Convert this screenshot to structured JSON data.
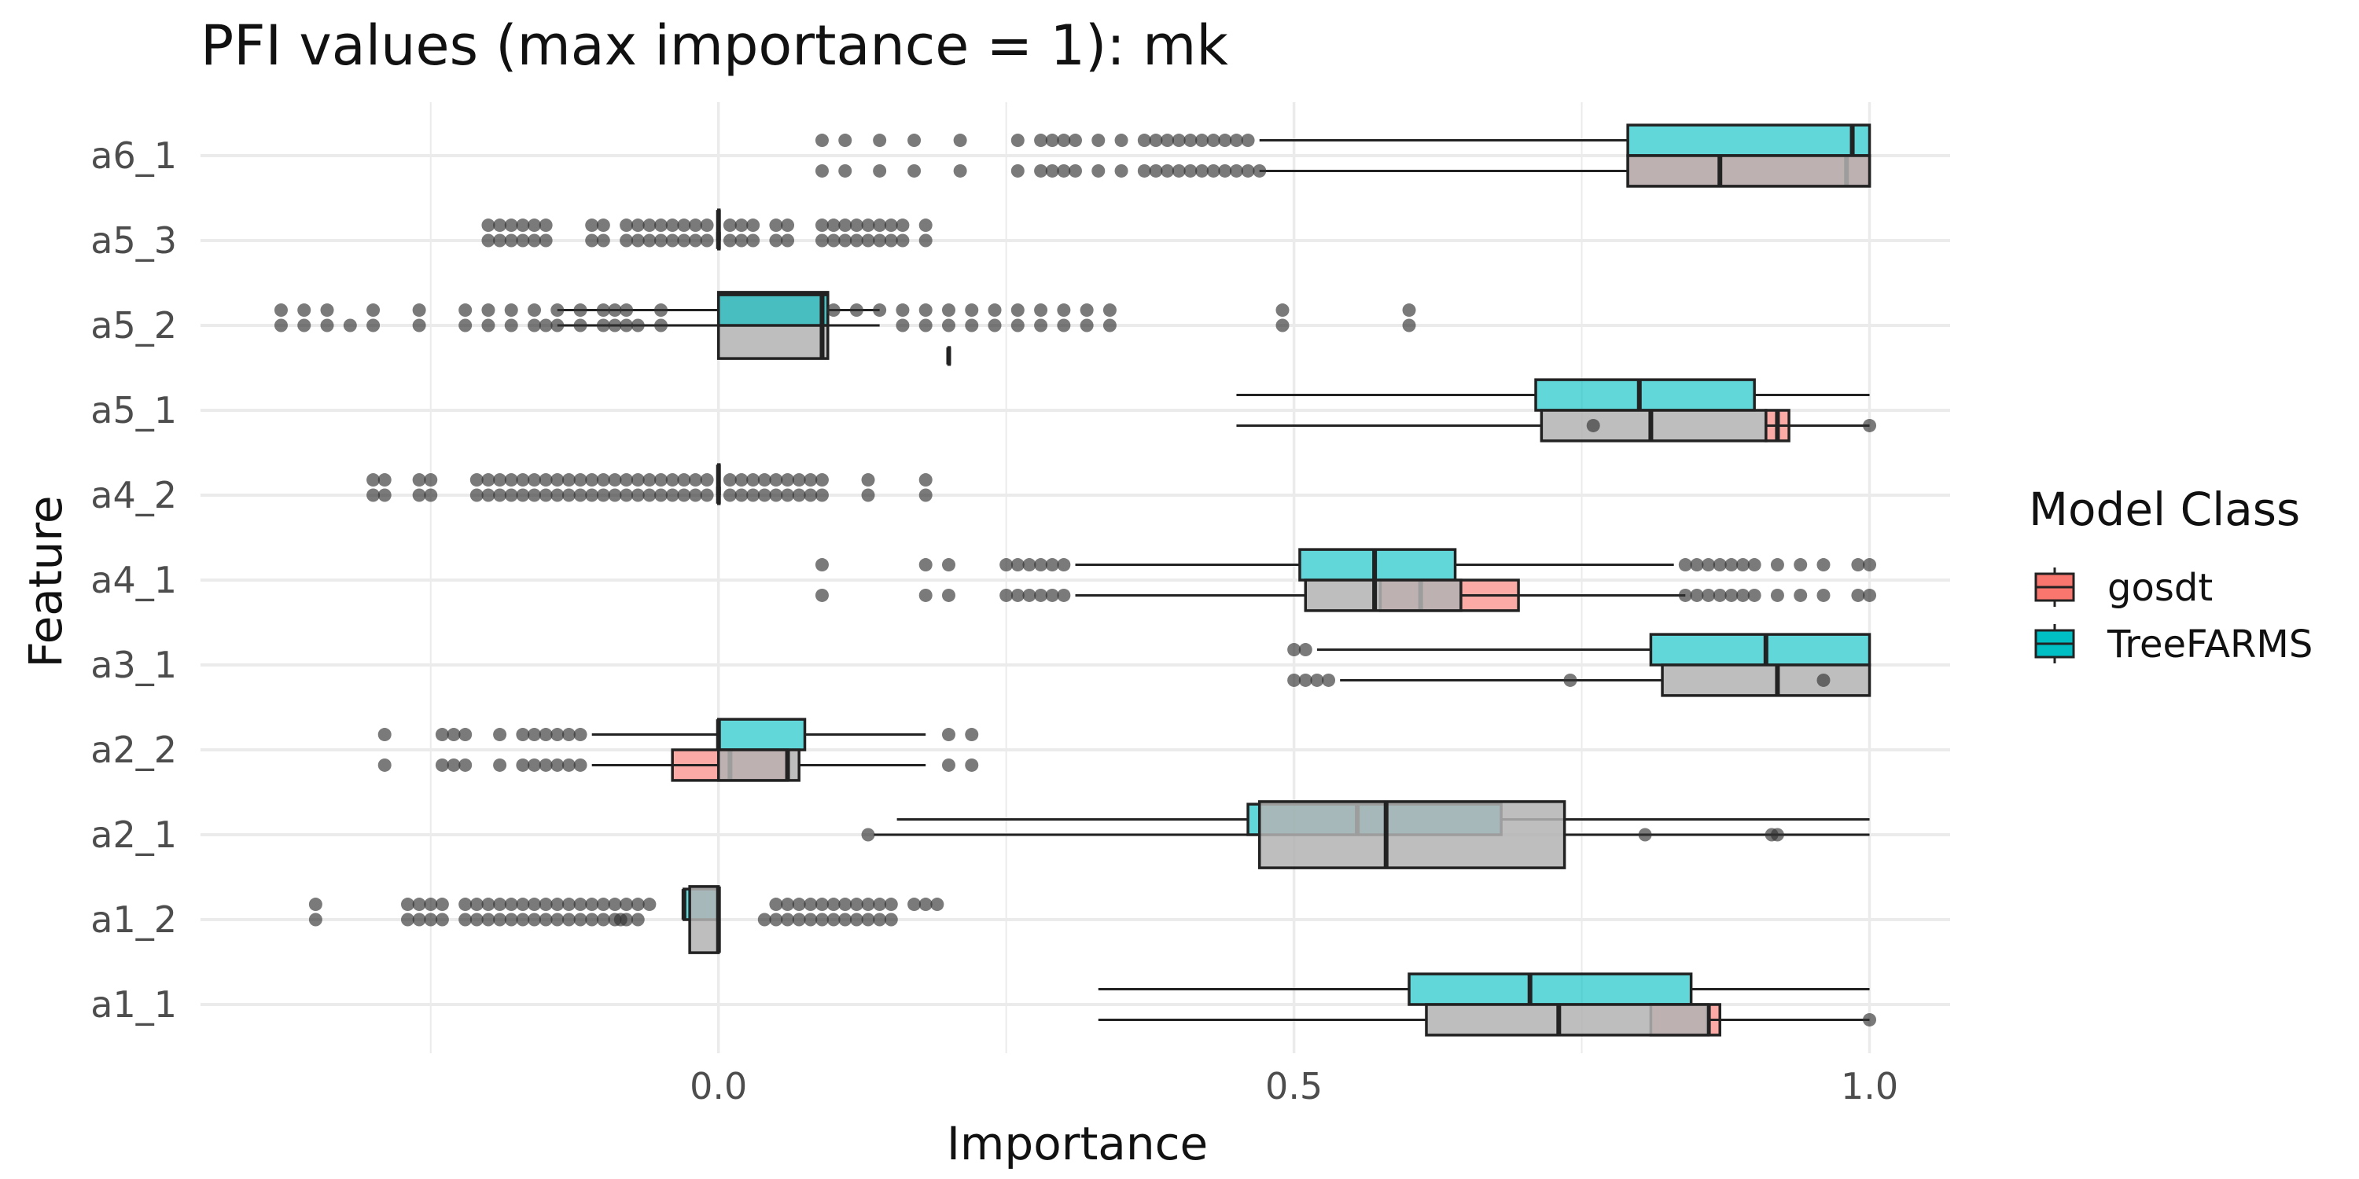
{
  "chart_data": {
    "type": "boxplot",
    "title": "PFI values (max importance = 1): mk",
    "xlabel": "Importance",
    "ylabel": "Feature",
    "xlim": [
      -0.45,
      1.07
    ],
    "x_ticks": [
      {
        "value": 0.0,
        "label": "0.0"
      },
      {
        "value": 0.5,
        "label": "0.5"
      },
      {
        "value": 1.0,
        "label": "1.0"
      }
    ],
    "x_minor_ticks": [
      -0.25,
      0.25,
      0.75
    ],
    "grid": true,
    "legend": {
      "title": "Model Class",
      "placement": "right",
      "entries": [
        {
          "label": "gosdt",
          "color": "#F8766D"
        },
        {
          "label": "TreeFARMS",
          "color": "#00BFC4"
        }
      ]
    },
    "colors": {
      "gosdt": "#F8766D",
      "TreeFARMS": "#00BFC4",
      "other": "#b3b3b3",
      "outline": "#222222",
      "grid": "#ebebeb"
    },
    "categories": [
      "a6_1",
      "a5_3",
      "a5_2",
      "a5_1",
      "a4_2",
      "a4_1",
      "a3_1",
      "a2_2",
      "a2_1",
      "a1_2",
      "a1_1"
    ],
    "boxes": [
      {
        "feature": "a6_1",
        "group": "TreeFARMS",
        "lane": -0.18,
        "height": 0.36,
        "q1": 0.79,
        "median": 0.985,
        "q3": 1.0,
        "whisker_low": 0.47,
        "whisker_high": 1.0,
        "outliers": [
          0.09,
          0.11,
          0.14,
          0.17,
          0.21,
          0.26,
          0.28,
          0.29,
          0.3,
          0.31,
          0.33,
          0.35,
          0.37,
          0.38,
          0.39,
          0.4,
          0.41,
          0.42,
          0.43,
          0.44,
          0.45,
          0.46
        ]
      },
      {
        "feature": "a6_1",
        "group": "gosdt",
        "lane": 0.18,
        "height": 0.36,
        "q1": 0.79,
        "median": 0.98,
        "q3": 1.0,
        "whisker_low": 0.76,
        "whisker_high": 1.0,
        "outliers": []
      },
      {
        "feature": "a6_1",
        "group": "other",
        "lane": 0.18,
        "height": 0.36,
        "q1": 0.79,
        "median": 0.87,
        "q3": 1.0,
        "whisker_low": 0.47,
        "whisker_high": 1.0,
        "outliers": [
          0.09,
          0.11,
          0.14,
          0.17,
          0.21,
          0.26,
          0.28,
          0.29,
          0.3,
          0.31,
          0.33,
          0.35,
          0.37,
          0.38,
          0.39,
          0.4,
          0.41,
          0.42,
          0.43,
          0.44,
          0.45,
          0.46,
          0.47
        ]
      },
      {
        "feature": "a5_3",
        "group": "TreeFARMS",
        "lane": -0.18,
        "height": 0.36,
        "q1": 0.0,
        "median": 0.0,
        "q3": 0.0,
        "whisker_low": 0.0,
        "whisker_high": 0.0,
        "outliers": [
          -0.2,
          -0.19,
          -0.18,
          -0.17,
          -0.16,
          -0.15,
          -0.11,
          -0.1,
          -0.08,
          -0.07,
          -0.06,
          -0.05,
          -0.04,
          -0.03,
          -0.02,
          -0.01,
          0.01,
          0.02,
          0.03,
          0.05,
          0.06,
          0.09,
          0.1,
          0.11,
          0.12,
          0.13,
          0.14,
          0.15,
          0.16,
          0.18
        ]
      },
      {
        "feature": "a5_3",
        "group": "other",
        "lane": 0.0,
        "height": 0.2,
        "q1": 0.0,
        "median": 0.0,
        "q3": 0.0,
        "whisker_low": 0.0,
        "whisker_high": 0.0,
        "outliers": [
          -0.2,
          -0.19,
          -0.18,
          -0.17,
          -0.16,
          -0.15,
          -0.11,
          -0.1,
          -0.08,
          -0.07,
          -0.06,
          -0.05,
          -0.04,
          -0.03,
          -0.02,
          -0.01,
          0.01,
          0.02,
          0.03,
          0.05,
          0.06,
          0.09,
          0.1,
          0.11,
          0.12,
          0.13,
          0.14,
          0.15,
          0.16,
          0.18
        ]
      },
      {
        "feature": "a5_2",
        "group": "other",
        "lane": 0.0,
        "height": 0.78,
        "q1": 0.0,
        "median": 0.09,
        "q3": 0.095,
        "whisker_low": -0.14,
        "whisker_high": 0.14,
        "outliers": [
          -0.38,
          -0.36,
          -0.34,
          -0.32,
          -0.3,
          -0.26,
          -0.22,
          -0.2,
          -0.18,
          -0.16,
          -0.15,
          -0.14,
          -0.12,
          -0.1,
          -0.09,
          -0.08,
          -0.07,
          -0.05,
          0.16,
          0.18,
          0.2,
          0.22,
          0.24,
          0.26,
          0.28,
          0.3,
          0.32,
          0.34,
          0.49,
          0.6
        ]
      },
      {
        "feature": "a5_2",
        "group": "TreeFARMS",
        "lane": -0.18,
        "height": 0.36,
        "q1": 0.0,
        "median": 0.09,
        "q3": 0.095,
        "whisker_low": -0.14,
        "whisker_high": 0.14,
        "outliers": [
          -0.38,
          -0.36,
          -0.34,
          -0.3,
          -0.26,
          -0.22,
          -0.2,
          -0.18,
          -0.16,
          -0.14,
          -0.12,
          -0.1,
          -0.09,
          -0.08,
          -0.05,
          0.1,
          0.12,
          0.14,
          0.16,
          0.18,
          0.2,
          0.22,
          0.24,
          0.26,
          0.28,
          0.3,
          0.32,
          0.34,
          0.49,
          0.6
        ]
      },
      {
        "feature": "a5_2",
        "group": "gosdt",
        "lane": 0.36,
        "height": 0.2,
        "q1": 0.2,
        "median": 0.2,
        "q3": 0.2,
        "whisker_low": 0.2,
        "whisker_high": 0.2,
        "outliers": []
      },
      {
        "feature": "a5_1",
        "group": "TreeFARMS",
        "lane": -0.18,
        "height": 0.36,
        "q1": 0.71,
        "median": 0.8,
        "q3": 0.9,
        "whisker_low": 0.45,
        "whisker_high": 1.0,
        "outliers": []
      },
      {
        "feature": "a5_1",
        "group": "gosdt",
        "lane": 0.18,
        "height": 0.36,
        "q1": 0.91,
        "median": 0.92,
        "q3": 0.93,
        "whisker_low": 0.91,
        "whisker_high": 0.93,
        "outliers": []
      },
      {
        "feature": "a5_1",
        "group": "other",
        "lane": 0.18,
        "height": 0.36,
        "q1": 0.715,
        "median": 0.81,
        "q3": 0.91,
        "whisker_low": 0.45,
        "whisker_high": 1.0,
        "outliers": [
          0.76,
          1.0
        ]
      },
      {
        "feature": "a4_2",
        "group": "TreeFARMS",
        "lane": -0.18,
        "height": 0.36,
        "q1": 0.0,
        "median": 0.0,
        "q3": 0.0,
        "whisker_low": 0.0,
        "whisker_high": 0.0,
        "outliers": [
          -0.3,
          -0.29,
          -0.26,
          -0.25,
          -0.21,
          -0.2,
          -0.19,
          -0.18,
          -0.17,
          -0.16,
          -0.15,
          -0.14,
          -0.13,
          -0.12,
          -0.11,
          -0.1,
          -0.09,
          -0.08,
          -0.07,
          -0.06,
          -0.05,
          -0.04,
          -0.03,
          -0.02,
          -0.01,
          0.01,
          0.02,
          0.03,
          0.04,
          0.05,
          0.06,
          0.07,
          0.08,
          0.09,
          0.13,
          0.18
        ]
      },
      {
        "feature": "a4_2",
        "group": "other",
        "lane": 0.0,
        "height": 0.2,
        "q1": 0.0,
        "median": 0.0,
        "q3": 0.0,
        "whisker_low": 0.0,
        "whisker_high": 0.0,
        "outliers": [
          -0.3,
          -0.29,
          -0.26,
          -0.25,
          -0.21,
          -0.2,
          -0.19,
          -0.18,
          -0.17,
          -0.16,
          -0.15,
          -0.14,
          -0.13,
          -0.12,
          -0.11,
          -0.1,
          -0.09,
          -0.08,
          -0.07,
          -0.06,
          -0.05,
          -0.04,
          -0.03,
          -0.02,
          -0.01,
          0.01,
          0.02,
          0.03,
          0.04,
          0.05,
          0.06,
          0.07,
          0.08,
          0.09,
          0.13,
          0.18
        ]
      },
      {
        "feature": "a4_1",
        "group": "TreeFARMS",
        "lane": -0.18,
        "height": 0.36,
        "q1": 0.505,
        "median": 0.57,
        "q3": 0.64,
        "whisker_low": 0.31,
        "whisker_high": 0.83,
        "outliers": [
          0.09,
          0.18,
          0.2,
          0.25,
          0.26,
          0.27,
          0.28,
          0.29,
          0.3,
          0.84,
          0.85,
          0.86,
          0.87,
          0.88,
          0.89,
          0.9,
          0.92,
          0.94,
          0.96,
          0.99,
          1.0
        ]
      },
      {
        "feature": "a4_1",
        "group": "gosdt",
        "lane": 0.18,
        "height": 0.36,
        "q1": 0.575,
        "median": 0.61,
        "q3": 0.695,
        "whisker_low": 0.575,
        "whisker_high": 0.695,
        "outliers": []
      },
      {
        "feature": "a4_1",
        "group": "other",
        "lane": 0.18,
        "height": 0.36,
        "q1": 0.51,
        "median": 0.57,
        "q3": 0.645,
        "whisker_low": 0.31,
        "whisker_high": 0.84,
        "outliers": [
          0.09,
          0.18,
          0.2,
          0.25,
          0.26,
          0.27,
          0.28,
          0.29,
          0.3,
          0.84,
          0.85,
          0.86,
          0.87,
          0.88,
          0.89,
          0.9,
          0.92,
          0.94,
          0.96,
          0.99,
          1.0
        ]
      },
      {
        "feature": "a3_1",
        "group": "TreeFARMS",
        "lane": -0.18,
        "height": 0.36,
        "q1": 0.81,
        "median": 0.91,
        "q3": 1.0,
        "whisker_low": 0.52,
        "whisker_high": 1.0,
        "outliers": [
          0.5,
          0.51
        ]
      },
      {
        "feature": "a3_1",
        "group": "other",
        "lane": 0.18,
        "height": 0.36,
        "q1": 0.82,
        "median": 0.92,
        "q3": 1.0,
        "whisker_low": 0.54,
        "whisker_high": 1.0,
        "outliers": [
          0.5,
          0.51,
          0.52,
          0.53,
          0.74,
          0.96
        ]
      },
      {
        "feature": "a2_2",
        "group": "TreeFARMS",
        "lane": -0.18,
        "height": 0.36,
        "q1": 0.0,
        "median": 0.0,
        "q3": 0.075,
        "whisker_low": -0.11,
        "whisker_high": 0.18,
        "outliers": [
          -0.29,
          -0.24,
          -0.23,
          -0.22,
          -0.19,
          -0.17,
          -0.16,
          -0.15,
          -0.14,
          -0.13,
          -0.12,
          0.2,
          0.22
        ]
      },
      {
        "feature": "a2_2",
        "group": "gosdt",
        "lane": 0.18,
        "height": 0.36,
        "q1": -0.04,
        "median": 0.01,
        "q3": 0.06,
        "whisker_low": -0.04,
        "whisker_high": 0.06,
        "outliers": []
      },
      {
        "feature": "a2_2",
        "group": "other",
        "lane": 0.18,
        "height": 0.36,
        "q1": 0.0,
        "median": 0.06,
        "q3": 0.07,
        "whisker_low": -0.11,
        "whisker_high": 0.18,
        "outliers": [
          -0.29,
          -0.24,
          -0.23,
          -0.22,
          -0.19,
          -0.17,
          -0.16,
          -0.15,
          -0.14,
          -0.13,
          -0.12,
          0.2,
          0.22
        ]
      },
      {
        "feature": "a2_1",
        "group": "TreeFARMS",
        "lane": -0.18,
        "height": 0.36,
        "q1": 0.46,
        "median": 0.555,
        "q3": 0.68,
        "whisker_low": 0.155,
        "whisker_high": 1.0,
        "outliers": []
      },
      {
        "feature": "a2_1",
        "group": "other",
        "lane": 0.0,
        "height": 0.78,
        "q1": 0.47,
        "median": 0.58,
        "q3": 0.735,
        "whisker_low": 0.135,
        "whisker_high": 1.0,
        "outliers": [
          0.13,
          0.805,
          0.915,
          0.92
        ]
      },
      {
        "feature": "a1_2",
        "group": "TreeFARMS",
        "lane": -0.18,
        "height": 0.36,
        "q1": -0.03,
        "median": -0.03,
        "q3": 0.0,
        "whisker_low": -0.03,
        "whisker_high": 0.0,
        "outliers": [
          -0.35,
          -0.27,
          -0.26,
          -0.25,
          -0.24,
          -0.22,
          -0.21,
          -0.2,
          -0.19,
          -0.18,
          -0.17,
          -0.16,
          -0.15,
          -0.14,
          -0.13,
          -0.12,
          -0.11,
          -0.1,
          -0.09,
          -0.08,
          -0.07,
          -0.06,
          0.05,
          0.06,
          0.07,
          0.08,
          0.09,
          0.1,
          0.11,
          0.12,
          0.13,
          0.14,
          0.15,
          0.17,
          0.18,
          0.19
        ]
      },
      {
        "feature": "a1_2",
        "group": "other",
        "lane": 0.0,
        "height": 0.78,
        "q1": -0.025,
        "median": 0.0,
        "q3": 0.0,
        "whisker_low": -0.025,
        "whisker_high": 0.0,
        "outliers": [
          -0.35,
          -0.27,
          -0.26,
          -0.25,
          -0.24,
          -0.22,
          -0.21,
          -0.2,
          -0.19,
          -0.18,
          -0.17,
          -0.16,
          -0.15,
          -0.14,
          -0.13,
          -0.12,
          -0.11,
          -0.1,
          -0.09,
          -0.085,
          -0.08,
          -0.07,
          0.04,
          0.05,
          0.06,
          0.07,
          0.08,
          0.09,
          0.1,
          0.11,
          0.12,
          0.13,
          0.14,
          0.15
        ]
      },
      {
        "feature": "a1_1",
        "group": "TreeFARMS",
        "lane": -0.18,
        "height": 0.36,
        "q1": 0.6,
        "median": 0.705,
        "q3": 0.845,
        "whisker_low": 0.33,
        "whisker_high": 1.0,
        "outliers": []
      },
      {
        "feature": "a1_1",
        "group": "gosdt",
        "lane": 0.18,
        "height": 0.36,
        "q1": 0.81,
        "median": 0.86,
        "q3": 0.87,
        "whisker_low": 0.81,
        "whisker_high": 0.87,
        "outliers": []
      },
      {
        "feature": "a1_1",
        "group": "other",
        "lane": 0.18,
        "height": 0.36,
        "q1": 0.615,
        "median": 0.73,
        "q3": 0.86,
        "whisker_low": 0.33,
        "whisker_high": 1.0,
        "outliers": [
          1.0
        ]
      }
    ]
  }
}
